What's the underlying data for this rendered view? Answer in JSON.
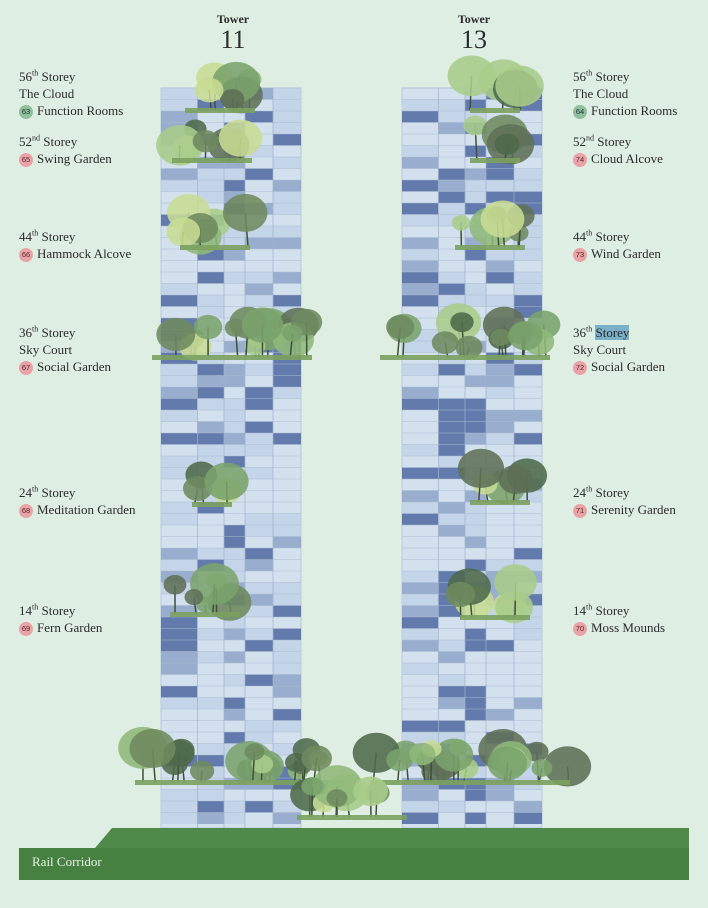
{
  "towers": [
    {
      "label": "Tower",
      "number": "11"
    },
    {
      "label": "Tower",
      "number": "13"
    }
  ],
  "left_labels": [
    {
      "storey_num": "56",
      "storey_suffix": "th",
      "storey_word": "Storey",
      "subtitle": "The Cloud",
      "badge": "63",
      "badge_color": "green",
      "name": "Function Rooms"
    },
    {
      "storey_num": "52",
      "storey_suffix": "nd",
      "storey_word": "Storey",
      "subtitle": "",
      "badge": "65",
      "badge_color": "pink",
      "name": "Swing Garden"
    },
    {
      "storey_num": "44",
      "storey_suffix": "th",
      "storey_word": "Storey",
      "subtitle": "",
      "badge": "66",
      "badge_color": "pink",
      "name": "Hammock Alcove"
    },
    {
      "storey_num": "36",
      "storey_suffix": "th",
      "storey_word": "Storey",
      "subtitle": "Sky Court",
      "badge": "67",
      "badge_color": "pink",
      "name": "Social Garden"
    },
    {
      "storey_num": "24",
      "storey_suffix": "th",
      "storey_word": "Storey",
      "subtitle": "",
      "badge": "68",
      "badge_color": "pink",
      "name": "Meditation Garden"
    },
    {
      "storey_num": "14",
      "storey_suffix": "th",
      "storey_word": "Storey",
      "subtitle": "",
      "badge": "69",
      "badge_color": "pink",
      "name": "Fern Garden"
    }
  ],
  "right_labels": [
    {
      "storey_num": "56",
      "storey_suffix": "th",
      "storey_word": "Storey",
      "subtitle": "The Cloud",
      "badge": "64",
      "badge_color": "green",
      "name": "Function Rooms"
    },
    {
      "storey_num": "52",
      "storey_suffix": "nd",
      "storey_word": "Storey",
      "subtitle": "",
      "badge": "74",
      "badge_color": "pink",
      "name": "Cloud Alcove"
    },
    {
      "storey_num": "44",
      "storey_suffix": "th",
      "storey_word": "Storey",
      "subtitle": "",
      "badge": "73",
      "badge_color": "pink",
      "name": "Wind Garden"
    },
    {
      "storey_num": "36",
      "storey_suffix": "th",
      "storey_word": "Storey",
      "subtitle": "Sky Court",
      "badge": "72",
      "badge_color": "pink",
      "name": "Social Garden"
    },
    {
      "storey_num": "24",
      "storey_suffix": "th",
      "storey_word": "Storey",
      "subtitle": "",
      "badge": "71",
      "badge_color": "pink",
      "name": "Serenity Garden"
    },
    {
      "storey_num": "14",
      "storey_suffix": "th",
      "storey_word": "Storey",
      "subtitle": "",
      "badge": "70",
      "badge_color": "pink",
      "name": "Moss Mounds"
    }
  ],
  "ground": {
    "label": "Rail Corridor"
  },
  "colors": {
    "background": "#dfeee3",
    "ground": "#4f8a4a",
    "glass_light": "#d3e1ef",
    "glass_dark": "#4d67a0",
    "badge_pink": "#e9a3a6",
    "badge_green": "#8fbf9b"
  }
}
